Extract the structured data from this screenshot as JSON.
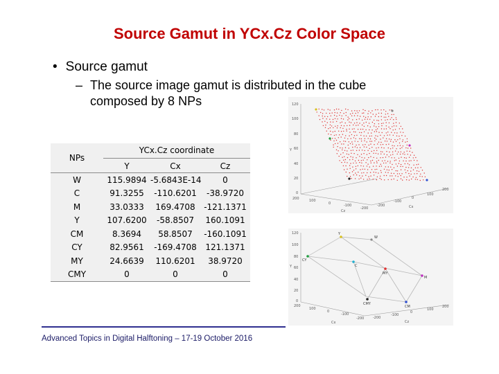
{
  "slide": {
    "title": "Source Gamut in YCx.Cz Color Space",
    "bullet_mark": "•",
    "bullet": "Source gamut",
    "sub_dash": "–",
    "sub_bullet": "The source image gamut is distributed in the cube composed by 8 NPs",
    "footer": "Advanced Topics in Digital Halftoning – 17-19 October 2016"
  },
  "table": {
    "header_nps": "NPs",
    "header_group": "YCx.Cz coordinate",
    "col_y": "Y",
    "col_cx": "Cx",
    "col_cz": "Cz",
    "rows": [
      {
        "np": "W",
        "y": "115.9894",
        "cx": "-5.6843E-14",
        "cz": "0"
      },
      {
        "np": "C",
        "y": "91.3255",
        "cx": "-110.6201",
        "cz": "-38.9720"
      },
      {
        "np": "M",
        "y": "33.0333",
        "cx": "169.4708",
        "cz": "-121.1371"
      },
      {
        "np": "Y",
        "y": "107.6200",
        "cx": "-58.8507",
        "cz": "160.1091"
      },
      {
        "np": "CM",
        "y": "8.3694",
        "cx": "58.8507",
        "cz": "-160.1091"
      },
      {
        "np": "CY",
        "y": "82.9561",
        "cx": "-169.4708",
        "cz": "121.1371"
      },
      {
        "np": "MY",
        "y": "24.6639",
        "cx": "110.6201",
        "cz": "38.9720"
      },
      {
        "np": "CMY",
        "y": "0",
        "cx": "0",
        "cz": "0"
      }
    ]
  },
  "plot1": {
    "y_ticks": [
      "120",
      "100",
      "80",
      "60",
      "40",
      "20",
      "0"
    ],
    "x_ticks": [
      "200",
      "100",
      "0",
      "-100",
      "-200"
    ],
    "z_ticks": [
      "-200",
      "-100",
      "0",
      "100",
      "200"
    ],
    "xlabel": "Cz",
    "zlabel": "Cx",
    "ylabel": "Y",
    "point_color": "#e03030"
  },
  "plot2": {
    "y_ticks": [
      "120",
      "100",
      "80",
      "60",
      "40",
      "20",
      "0"
    ],
    "x_ticks": [
      "200",
      "100",
      "0",
      "-100",
      "-200"
    ],
    "z_ticks": [
      "-200",
      "-100",
      "0",
      "100",
      "200"
    ],
    "xlabel": "Cx",
    "zlabel": "Cz",
    "ylabel": "Y",
    "labels": {
      "w": "W",
      "y": "Y",
      "cy": "CY",
      "c": "C",
      "my": "MY",
      "m": "M",
      "cmy": "CMY",
      "cm": "CM"
    }
  }
}
